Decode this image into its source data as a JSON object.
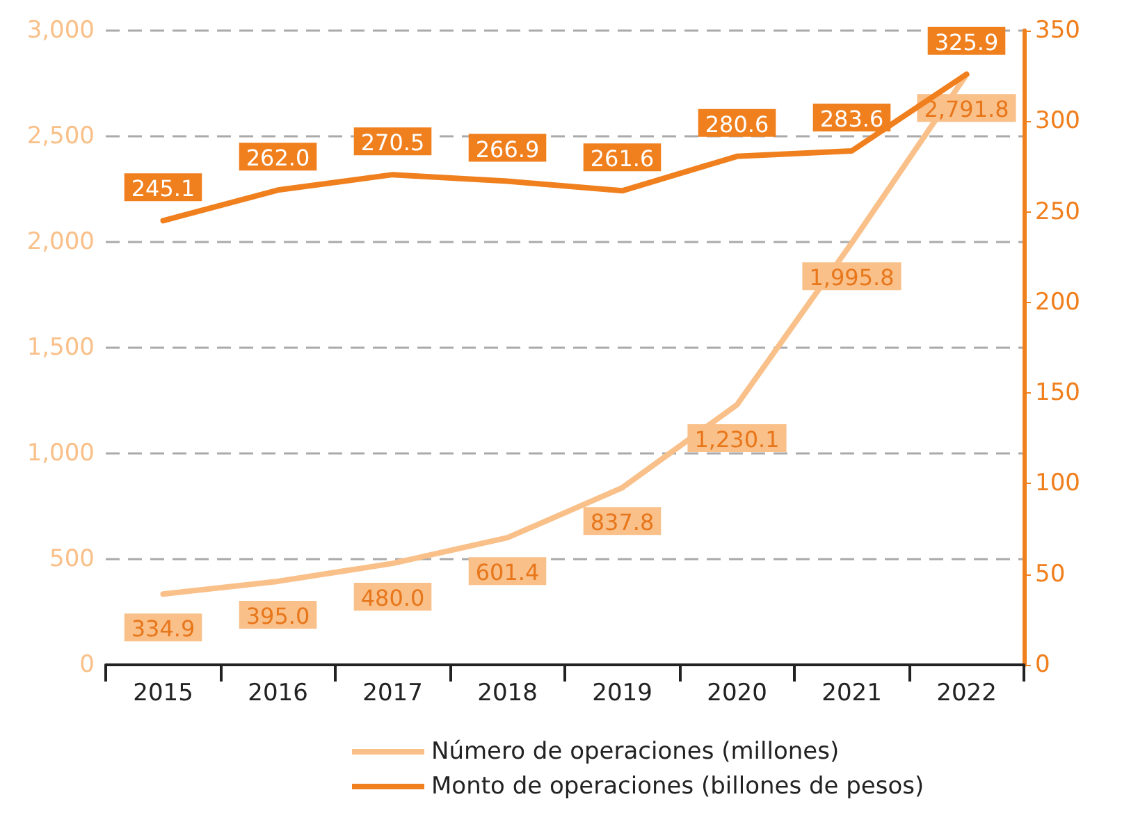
{
  "chart_data": {
    "type": "line",
    "categories": [
      "2015",
      "2016",
      "2017",
      "2018",
      "2019",
      "2020",
      "2021",
      "2022"
    ],
    "series": [
      {
        "name": "Número de operaciones (millones)",
        "color": "#f9c08a",
        "values": [
          334.9,
          395.0,
          480.0,
          601.4,
          837.8,
          1230.1,
          1995.8,
          2791.8
        ],
        "value_labels": [
          "334.9",
          "395.0",
          "480.0",
          "601.4",
          "837.8",
          "1,230.1",
          "1,995.8",
          "2,791.8"
        ]
      },
      {
        "name": "Monto de operaciones (billones de pesos)",
        "color": "#f07f1e",
        "axis": "y2",
        "values": [
          245.1,
          262.0,
          270.5,
          266.9,
          261.6,
          280.6,
          283.6,
          325.9
        ],
        "value_labels": [
          "245.1",
          "262.0",
          "270.5",
          "266.9",
          "261.6",
          "280.6",
          "283.6",
          "325.9"
        ]
      }
    ],
    "ylim": [
      0,
      3000
    ],
    "yticks": [
      0,
      500,
      {
        "value": 1000,
        "label": "1,000"
      },
      {
        "value": 1500,
        "label": "1,500"
      },
      {
        "value": 2000,
        "label": "2,000"
      },
      {
        "value": 2500,
        "label": "2,500"
      },
      {
        "value": 3000,
        "label": "3,000"
      }
    ],
    "y2lim": [
      0,
      350
    ],
    "y2ticks": [
      0,
      50,
      100,
      150,
      200,
      250,
      300,
      350
    ],
    "grid": "y",
    "legend": "bottom",
    "marker": "none",
    "line_style": "solid"
  }
}
